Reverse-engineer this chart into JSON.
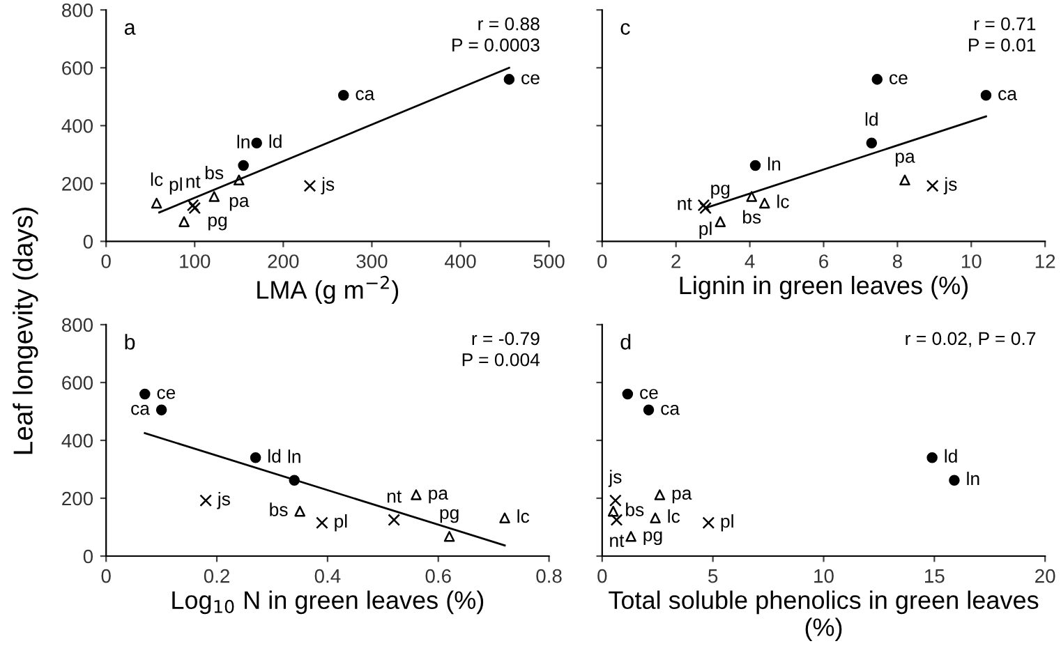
{
  "chart_data": [
    {
      "type": "scatter",
      "xlabel": "LMA (g m$^{−2}$)",
      "ylabel": "Leaf longevity (days)",
      "xlim": [
        0,
        500
      ],
      "xticks": [
        0,
        100,
        200,
        300,
        400,
        500
      ],
      "ylim": [
        0,
        800
      ],
      "yticks": [
        0,
        200,
        400,
        600,
        800
      ],
      "grid": false,
      "legend": false,
      "series": [
        {
          "color": "#000000",
          "marker": "circle",
          "x": [
            455,
            268,
            170,
            155
          ],
          "values": [
            560,
            505,
            340,
            262
          ]
        },
        {
          "color": "#000000",
          "marker": "triangle",
          "x": [
            150,
            122,
            57,
            88
          ],
          "values": [
            212,
            155,
            132,
            68
          ]
        },
        {
          "color": "#000000",
          "marker": "cross",
          "x": [
            230,
            98,
            100
          ],
          "values": [
            192,
            125,
            115
          ]
        },
        {
          "type": "line",
          "color": "#000000",
          "marker": "none",
          "x": [
            60,
            455
          ],
          "values": [
            100,
            600
          ]
        }
      ],
      "annotations": [
        "a",
        "r = 0.88",
        "P = 0.0003",
        {
          "text": "ce",
          "x": 455,
          "y": 560
        },
        {
          "text": "ca",
          "x": 268,
          "y": 505
        },
        {
          "text": "ld",
          "x": 170,
          "y": 340
        },
        {
          "text": "ln",
          "x": 155,
          "y": 262
        },
        {
          "text": "pa",
          "x": 150,
          "y": 212
        },
        {
          "text": "bs",
          "x": 122,
          "y": 155
        },
        {
          "text": "lc",
          "x": 57,
          "y": 132
        },
        {
          "text": "pg",
          "x": 88,
          "y": 68
        },
        {
          "text": "js",
          "x": 230,
          "y": 192
        },
        {
          "text": "nt",
          "x": 98,
          "y": 125
        },
        {
          "text": "pl",
          "x": 100,
          "y": 115
        }
      ]
    },
    {
      "type": "scatter",
      "xlabel": "Lignin in green leaves (%)",
      "xlim": [
        0,
        12
      ],
      "xticks": [
        0,
        2,
        4,
        6,
        8,
        10,
        12
      ],
      "ylim": [
        0,
        800
      ],
      "yticks": [
        0,
        200,
        400,
        600,
        800
      ],
      "tick_labels": "x",
      "grid": false,
      "legend": false,
      "series": [
        {
          "color": "#000000",
          "marker": "circle",
          "x": [
            7.45,
            10.4,
            7.3,
            4.15
          ],
          "values": [
            560,
            505,
            340,
            262
          ]
        },
        {
          "color": "#000000",
          "marker": "triangle",
          "x": [
            8.2,
            4.05,
            4.4,
            3.2
          ],
          "values": [
            212,
            155,
            132,
            68
          ]
        },
        {
          "color": "#000000",
          "marker": "cross",
          "x": [
            8.95,
            2.75,
            2.8
          ],
          "values": [
            192,
            125,
            115
          ]
        },
        {
          "type": "line",
          "color": "#000000",
          "marker": "none",
          "x": [
            2.8,
            10.4
          ],
          "values": [
            115,
            432
          ]
        }
      ],
      "annotations": [
        "c",
        "r = 0.71",
        "P = 0.01",
        {
          "text": "ce",
          "x": 7.45,
          "y": 560
        },
        {
          "text": "ca",
          "x": 10.4,
          "y": 505
        },
        {
          "text": "ld",
          "x": 7.3,
          "y": 340
        },
        {
          "text": "ln",
          "x": 4.15,
          "y": 262
        },
        {
          "text": "pa",
          "x": 8.2,
          "y": 212
        },
        {
          "text": "bs",
          "x": 4.05,
          "y": 155
        },
        {
          "text": "lc",
          "x": 4.4,
          "y": 132
        },
        {
          "text": "pg",
          "x": 3.2,
          "y": 68
        },
        {
          "text": "js",
          "x": 8.95,
          "y": 192
        },
        {
          "text": "nt",
          "x": 2.75,
          "y": 125
        },
        {
          "text": "pl",
          "x": 2.8,
          "y": 115
        }
      ]
    },
    {
      "type": "scatter",
      "xlabel": "Log$_{10}$ N in green leaves (%)",
      "xlim": [
        0,
        0.8
      ],
      "xticks": [
        0,
        0.2,
        0.4,
        0.6,
        0.8
      ],
      "ylim": [
        0,
        800
      ],
      "yticks": [
        0,
        200,
        400,
        600,
        800
      ],
      "grid": false,
      "legend": false,
      "series": [
        {
          "color": "#000000",
          "marker": "circle",
          "x": [
            0.07,
            0.1,
            0.27,
            0.34
          ],
          "values": [
            560,
            505,
            340,
            262
          ]
        },
        {
          "color": "#000000",
          "marker": "triangle",
          "x": [
            0.56,
            0.35,
            0.72,
            0.62
          ],
          "values": [
            212,
            155,
            132,
            68
          ]
        },
        {
          "color": "#000000",
          "marker": "cross",
          "x": [
            0.18,
            0.52,
            0.39
          ],
          "values": [
            192,
            125,
            115
          ]
        },
        {
          "type": "line",
          "color": "#000000",
          "marker": "none",
          "x": [
            0.07,
            0.72
          ],
          "values": [
            425,
            37
          ]
        }
      ],
      "annotations": [
        "b",
        "r = -0.79",
        "P = 0.004",
        {
          "text": "ce",
          "x": 0.07,
          "y": 560
        },
        {
          "text": "ca",
          "x": 0.1,
          "y": 505
        },
        {
          "text": "ld",
          "x": 0.27,
          "y": 340
        },
        {
          "text": "ln",
          "x": 0.34,
          "y": 262
        },
        {
          "text": "pa",
          "x": 0.56,
          "y": 212
        },
        {
          "text": "bs",
          "x": 0.35,
          "y": 155
        },
        {
          "text": "lc",
          "x": 0.72,
          "y": 132
        },
        {
          "text": "pg",
          "x": 0.62,
          "y": 68
        },
        {
          "text": "js",
          "x": 0.18,
          "y": 192
        },
        {
          "text": "nt",
          "x": 0.52,
          "y": 125
        },
        {
          "text": "pl",
          "x": 0.39,
          "y": 115
        }
      ]
    },
    {
      "type": "scatter",
      "xlabel": "Total soluble phenolics in green leaves (%)",
      "xlim": [
        0,
        20
      ],
      "xticks": [
        0,
        5,
        10,
        15,
        20
      ],
      "ylim": [
        0,
        800
      ],
      "yticks": [
        0,
        200,
        400,
        600,
        800
      ],
      "tick_labels": "x",
      "grid": false,
      "legend": false,
      "series": [
        {
          "color": "#000000",
          "marker": "circle",
          "x": [
            1.15,
            2.1,
            14.9,
            15.9
          ],
          "values": [
            560,
            505,
            340,
            262
          ]
        },
        {
          "color": "#000000",
          "marker": "triangle",
          "x": [
            2.6,
            0.5,
            2.4,
            1.3
          ],
          "values": [
            212,
            155,
            132,
            68
          ]
        },
        {
          "color": "#000000",
          "marker": "cross",
          "x": [
            0.6,
            0.65,
            4.8
          ],
          "values": [
            192,
            125,
            115
          ]
        }
      ],
      "annotations": [
        "d",
        "r = 0.02, P = 0.7",
        {
          "text": "ce",
          "x": 1.15,
          "y": 560
        },
        {
          "text": "ca",
          "x": 2.1,
          "y": 505
        },
        {
          "text": "ld",
          "x": 14.9,
          "y": 340
        },
        {
          "text": "ln",
          "x": 15.9,
          "y": 262
        },
        {
          "text": "pa",
          "x": 2.6,
          "y": 212
        },
        {
          "text": "bs",
          "x": 0.5,
          "y": 155
        },
        {
          "text": "lc",
          "x": 2.4,
          "y": 132
        },
        {
          "text": "pg",
          "x": 1.3,
          "y": 68
        },
        {
          "text": "js",
          "x": 0.6,
          "y": 192
        },
        {
          "text": "nt",
          "x": 0.65,
          "y": 125
        },
        {
          "text": "pl",
          "x": 4.8,
          "y": 115
        }
      ]
    }
  ]
}
